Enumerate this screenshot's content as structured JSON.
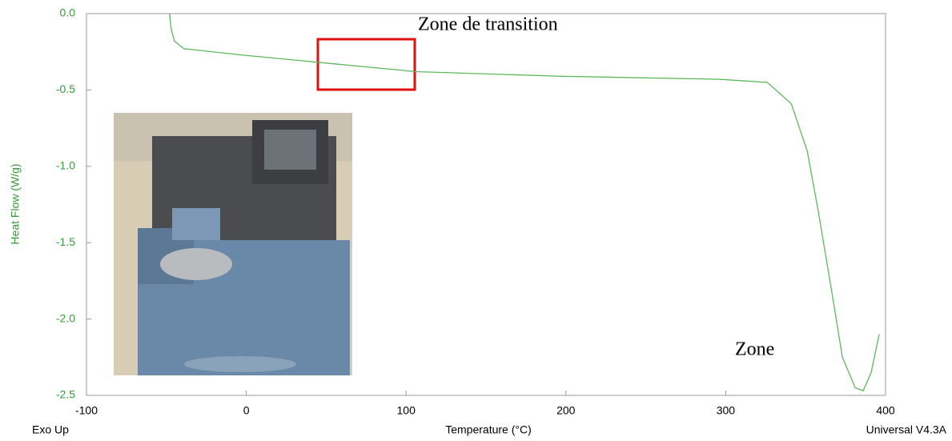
{
  "chart_data": {
    "type": "line",
    "ylabel": "Heat Flow (W/g)",
    "xlabel": "Temperature (°C)",
    "annotations": [
      "Zone de transition",
      "Zone"
    ],
    "corner_left": "Exo Up",
    "corner_right": "Universal V4.3A",
    "x": [
      -48,
      -47,
      -45,
      -39,
      -4,
      46,
      76,
      106,
      196,
      296,
      326,
      341,
      351,
      358,
      366,
      373,
      381,
      386,
      391,
      396
    ],
    "values": [
      0.0,
      -0.1,
      -0.18,
      -0.23,
      -0.27,
      -0.32,
      -0.35,
      -0.38,
      -0.41,
      -0.43,
      -0.45,
      -0.59,
      -0.9,
      -1.3,
      -1.8,
      -2.25,
      -2.45,
      -2.47,
      -2.35,
      -2.1
    ],
    "color": "#5cb85c",
    "xlim": [
      -100,
      400
    ],
    "ylim": [
      -2.5,
      0
    ],
    "xticks": [
      -100,
      0,
      100,
      200,
      300,
      400
    ],
    "yticks": [
      {
        "value": 0,
        "label": "0.0"
      },
      -0.5,
      {
        "value": -1,
        "label": "-1.0"
      },
      -1.5,
      {
        "value": -2,
        "label": "-2.0"
      },
      -2.5
    ]
  }
}
